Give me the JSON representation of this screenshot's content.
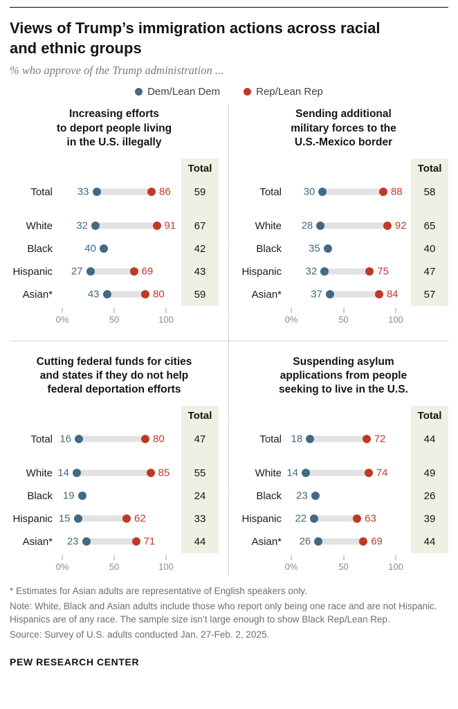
{
  "header": {
    "title_lines": [
      "Views of Trump’s immigration actions across racial",
      "and ethnic groups"
    ],
    "subtitle": "% who approve of the Trump administration ..."
  },
  "legend": {
    "dem": "Dem/Lean Dem",
    "rep": "Rep/Lean Rep"
  },
  "colors": {
    "dem": "#436983",
    "rep": "#bf3927",
    "track": "#e2e2e2",
    "total_bg": "#f0efe3"
  },
  "chart_data": {
    "type": "dumbbell",
    "total_header": "Total",
    "x_axis": {
      "min": 0,
      "max": 100,
      "ticks": [
        {
          "value": 0,
          "label": "0%"
        },
        {
          "value": 50,
          "label": "50"
        },
        {
          "value": 100,
          "label": "100"
        }
      ]
    },
    "panels": [
      {
        "title": "Increasing efforts to deport people living in the U.S. illegally",
        "title_lines": [
          "Increasing efforts",
          "to deport people living",
          "in the U.S. illegally"
        ],
        "rows": [
          {
            "label": "Total",
            "dem": 33,
            "rep": 86,
            "total": 59
          },
          {
            "label": "White",
            "dem": 32,
            "rep": 91,
            "total": 67
          },
          {
            "label": "Black",
            "dem": 40,
            "rep": null,
            "total": 42
          },
          {
            "label": "Hispanic",
            "dem": 27,
            "rep": 69,
            "total": 43
          },
          {
            "label": "Asian*",
            "dem": 43,
            "rep": 80,
            "total": 59
          }
        ]
      },
      {
        "title": "Sending additional military forces to the U.S.-Mexico border",
        "title_lines": [
          "Sending additional",
          "military forces to the",
          "U.S.-Mexico border"
        ],
        "rows": [
          {
            "label": "Total",
            "dem": 30,
            "rep": 88,
            "total": 58
          },
          {
            "label": "White",
            "dem": 28,
            "rep": 92,
            "total": 65
          },
          {
            "label": "Black",
            "dem": 35,
            "rep": null,
            "total": 40
          },
          {
            "label": "Hispanic",
            "dem": 32,
            "rep": 75,
            "total": 47
          },
          {
            "label": "Asian*",
            "dem": 37,
            "rep": 84,
            "total": 57
          }
        ]
      },
      {
        "title": "Cutting federal funds for cities and states if they do not help federal deportation efforts",
        "title_lines": [
          "Cutting federal funds for cities",
          "and states if they do not help",
          "federal deportation efforts"
        ],
        "rows": [
          {
            "label": "Total",
            "dem": 16,
            "rep": 80,
            "total": 47
          },
          {
            "label": "White",
            "dem": 14,
            "rep": 85,
            "total": 55
          },
          {
            "label": "Black",
            "dem": 19,
            "rep": null,
            "total": 24
          },
          {
            "label": "Hispanic",
            "dem": 15,
            "rep": 62,
            "total": 33
          },
          {
            "label": "Asian*",
            "dem": 23,
            "rep": 71,
            "total": 44
          }
        ]
      },
      {
        "title": "Suspending asylum applications from people seeking to live in the U.S.",
        "title_lines": [
          "Suspending asylum",
          "applications from people",
          "seeking to live in the U.S."
        ],
        "rows": [
          {
            "label": "Total",
            "dem": 18,
            "rep": 72,
            "total": 44
          },
          {
            "label": "White",
            "dem": 14,
            "rep": 74,
            "total": 49
          },
          {
            "label": "Black",
            "dem": 23,
            "rep": null,
            "total": 26
          },
          {
            "label": "Hispanic",
            "dem": 22,
            "rep": 63,
            "total": 39
          },
          {
            "label": "Asian*",
            "dem": 26,
            "rep": 69,
            "total": 44
          }
        ]
      }
    ]
  },
  "footer": {
    "asterisk": "* Estimates for Asian adults are representative of English speakers only.",
    "note": "Note: White, Black and Asian adults include those who report only being one race and are not Hispanic. Hispanics are of any race. The sample size isn’t large enough to show Black Rep/Lean Rep.",
    "source": "Source: Survey of U.S. adults conducted Jan. 27-Feb. 2, 2025.",
    "brand": "PEW RESEARCH CENTER"
  }
}
